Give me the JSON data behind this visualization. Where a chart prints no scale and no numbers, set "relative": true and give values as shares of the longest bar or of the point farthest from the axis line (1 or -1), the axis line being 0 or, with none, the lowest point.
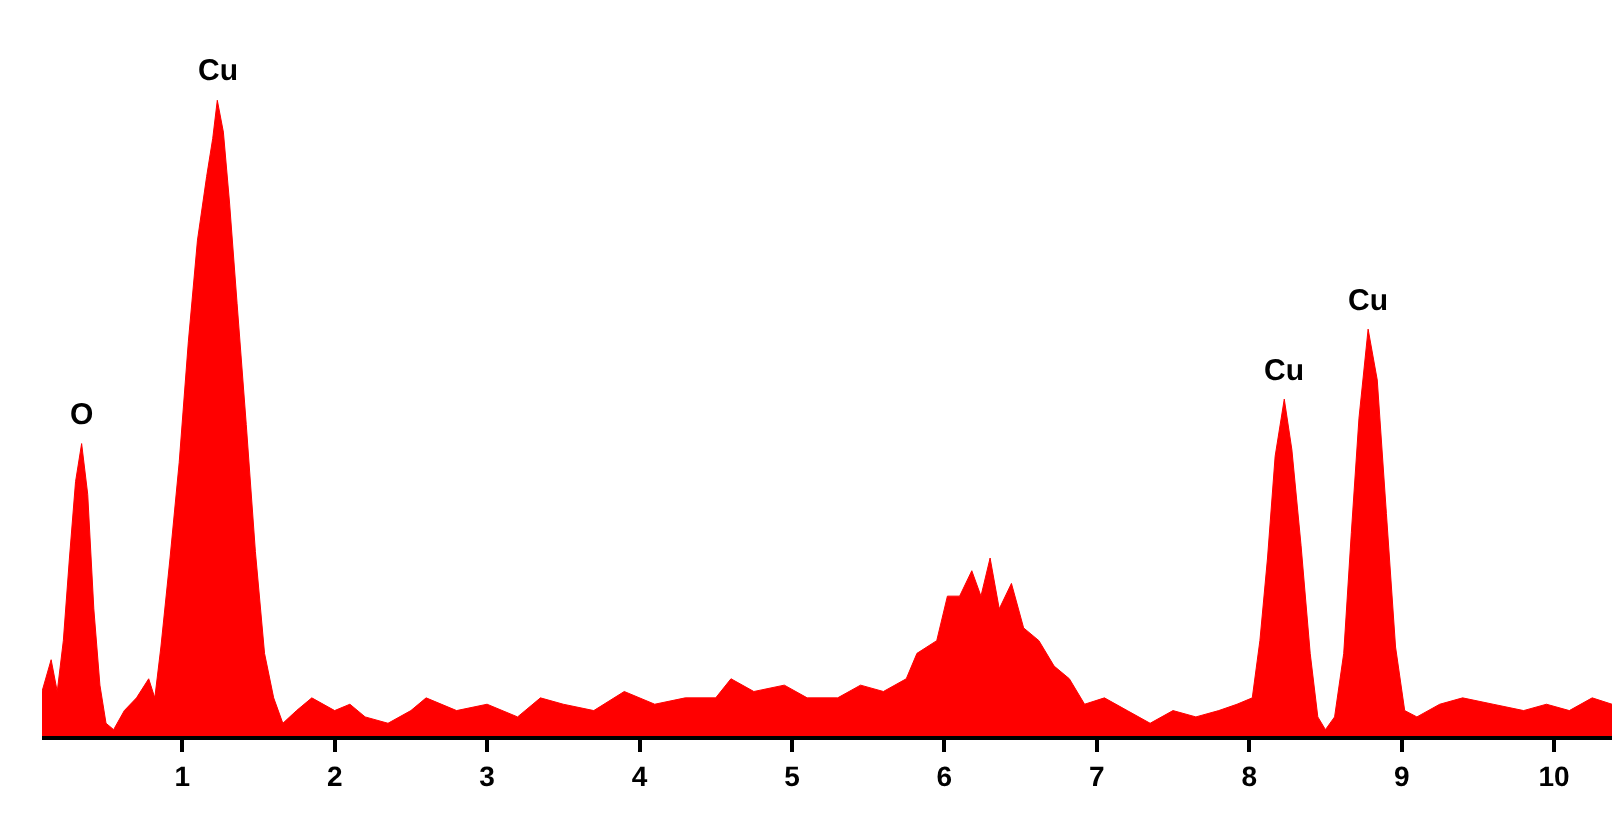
{
  "chart_data": {
    "type": "area",
    "relative": true,
    "color": "#ff0000",
    "x": [
      0.08,
      0.14,
      0.18,
      0.22,
      0.26,
      0.3,
      0.34,
      0.38,
      0.42,
      0.46,
      0.5,
      0.55,
      0.62,
      0.7,
      0.78,
      0.82,
      0.86,
      0.92,
      0.98,
      1.04,
      1.1,
      1.16,
      1.2,
      1.23,
      1.27,
      1.31,
      1.36,
      1.42,
      1.48,
      1.54,
      1.6,
      1.66,
      1.75,
      1.85,
      2.0,
      2.1,
      2.2,
      2.35,
      2.5,
      2.6,
      2.8,
      3.0,
      3.2,
      3.35,
      3.5,
      3.7,
      3.9,
      4.1,
      4.3,
      4.5,
      4.6,
      4.75,
      4.95,
      5.1,
      5.3,
      5.45,
      5.6,
      5.75,
      5.82,
      5.95,
      6.02,
      6.1,
      6.18,
      6.24,
      6.3,
      6.36,
      6.44,
      6.52,
      6.62,
      6.72,
      6.82,
      6.92,
      7.05,
      7.2,
      7.35,
      7.5,
      7.65,
      7.8,
      7.92,
      8.02,
      8.07,
      8.12,
      8.17,
      8.23,
      8.28,
      8.34,
      8.4,
      8.45,
      8.5,
      8.56,
      8.62,
      8.67,
      8.72,
      8.78,
      8.84,
      8.9,
      8.96,
      9.02,
      9.1,
      9.25,
      9.4,
      9.6,
      9.8,
      9.95,
      10.1,
      10.25,
      10.38
    ],
    "values": [
      0.07,
      0.12,
      0.07,
      0.15,
      0.28,
      0.4,
      0.46,
      0.38,
      0.2,
      0.08,
      0.02,
      0.01,
      0.04,
      0.06,
      0.09,
      0.06,
      0.14,
      0.28,
      0.43,
      0.62,
      0.78,
      0.88,
      0.94,
      1.0,
      0.95,
      0.84,
      0.68,
      0.49,
      0.29,
      0.13,
      0.06,
      0.02,
      0.04,
      0.06,
      0.04,
      0.05,
      0.03,
      0.02,
      0.04,
      0.06,
      0.04,
      0.05,
      0.03,
      0.06,
      0.05,
      0.04,
      0.07,
      0.05,
      0.06,
      0.06,
      0.09,
      0.07,
      0.08,
      0.06,
      0.06,
      0.08,
      0.07,
      0.09,
      0.13,
      0.15,
      0.22,
      0.22,
      0.26,
      0.22,
      0.28,
      0.2,
      0.24,
      0.17,
      0.15,
      0.11,
      0.09,
      0.05,
      0.06,
      0.04,
      0.02,
      0.04,
      0.03,
      0.04,
      0.05,
      0.06,
      0.15,
      0.28,
      0.44,
      0.53,
      0.45,
      0.3,
      0.13,
      0.03,
      0.01,
      0.03,
      0.13,
      0.32,
      0.5,
      0.64,
      0.56,
      0.35,
      0.14,
      0.04,
      0.03,
      0.05,
      0.06,
      0.05,
      0.04,
      0.05,
      0.04,
      0.06,
      0.05
    ],
    "xlim": [
      0.08,
      10.38
    ],
    "xticks": [
      1,
      2,
      3,
      4,
      5,
      6,
      7,
      8,
      9,
      10
    ],
    "annotations": [
      {
        "text": "O",
        "x": 0.34,
        "y": 0.46
      },
      {
        "text": "Cu",
        "x": 1.23,
        "y": 1.0
      },
      {
        "text": "Cu",
        "x": 8.23,
        "y": 0.53
      },
      {
        "text": "Cu",
        "x": 8.78,
        "y": 0.64
      }
    ]
  }
}
